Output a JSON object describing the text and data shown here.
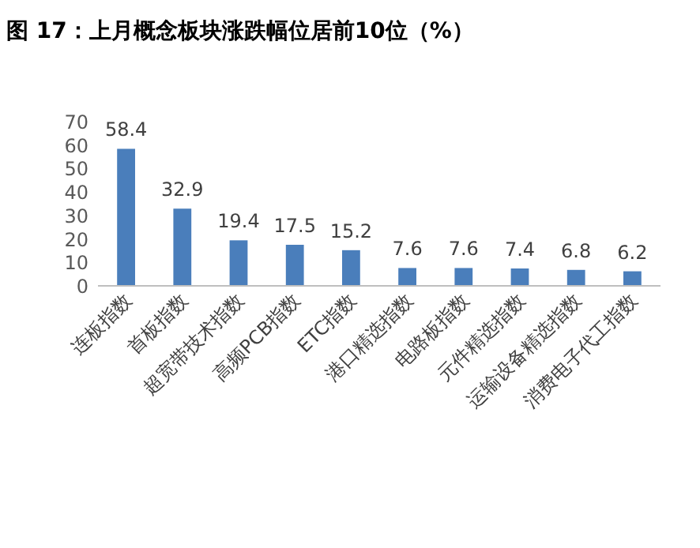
{
  "chart_data": {
    "type": "bar",
    "title": "图 17：上月概念板块涨跌幅位居前10位（%）",
    "categories": [
      "连板指数",
      "首板指数",
      "超宽带技术指数",
      "高频PCB指数",
      "ETC指数",
      "港口精选指数",
      "电路板指数",
      "元件精选指数",
      "运输设备精选指数",
      "消费电子代工指数"
    ],
    "values": [
      58.4,
      32.9,
      19.4,
      17.5,
      15.2,
      7.6,
      7.6,
      7.4,
      6.8,
      6.2
    ],
    "color": "#4a7ebb",
    "ylim": [
      0,
      70
    ],
    "yticks": [
      0,
      10,
      20,
      30,
      40,
      50,
      60,
      70
    ],
    "data_labels": true,
    "grid": false
  }
}
